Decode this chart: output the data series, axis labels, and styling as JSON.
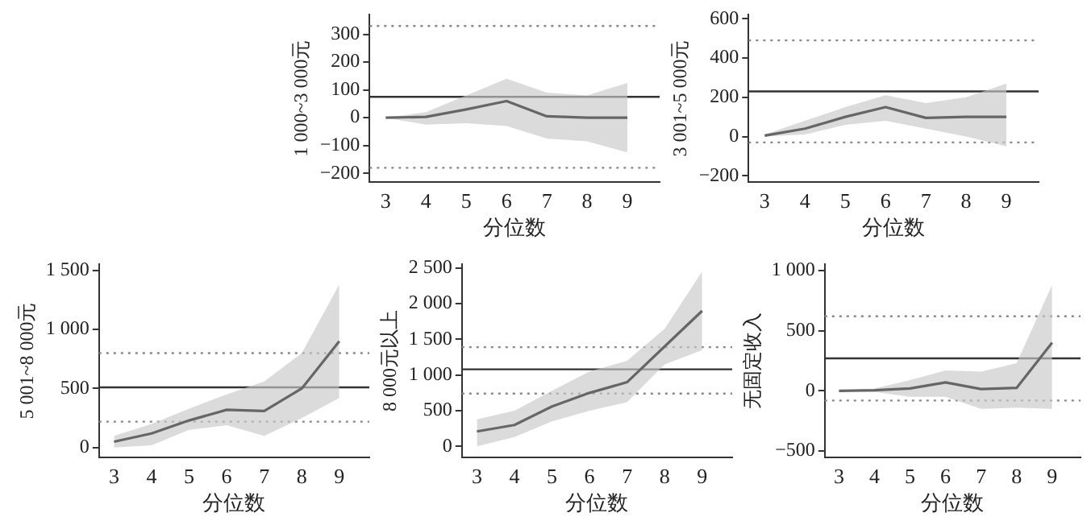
{
  "chart_data": [
    {
      "type": "line",
      "xlabel": "分位数",
      "ylabel": "1 000~3 000元",
      "x": [
        3,
        4,
        5,
        6,
        7,
        8,
        9
      ],
      "xlim": [
        2.6,
        9.8
      ],
      "xticks": [
        3,
        4,
        5,
        6,
        7,
        8,
        9
      ],
      "ylim": [
        -230,
        370
      ],
      "yticks": [
        -200,
        -100,
        0,
        100,
        200,
        300
      ],
      "grid": false,
      "legend": false,
      "marker": "none",
      "series": [
        {
          "color": "#666666",
          "values": [
            0,
            3,
            30,
            60,
            5,
            0,
            0
          ],
          "lower": [
            0,
            -25,
            -20,
            -30,
            -75,
            -85,
            -125
          ],
          "upper": [
            0,
            20,
            80,
            140,
            90,
            80,
            125
          ]
        }
      ],
      "ref_lines": [
        {
          "axis": "y",
          "value": 75,
          "color": "#333333",
          "line_style": "solid"
        },
        {
          "axis": "y",
          "value": 330,
          "color": "#888888",
          "line_style": "dotted"
        },
        {
          "axis": "y",
          "value": -180,
          "color": "#888888",
          "line_style": "dotted"
        }
      ]
    },
    {
      "type": "line",
      "xlabel": "分位数",
      "ylabel": "3 001~5 000元",
      "x": [
        3,
        4,
        5,
        6,
        7,
        8,
        9
      ],
      "xlim": [
        2.6,
        9.8
      ],
      "xticks": [
        3,
        4,
        5,
        6,
        7,
        8,
        9
      ],
      "ylim": [
        -230,
        620
      ],
      "yticks": [
        -200,
        0,
        200,
        400,
        600
      ],
      "grid": false,
      "legend": false,
      "marker": "none",
      "series": [
        {
          "color": "#666666",
          "values": [
            5,
            40,
            100,
            150,
            95,
            100,
            100
          ],
          "lower": [
            0,
            10,
            60,
            80,
            40,
            0,
            -50
          ],
          "upper": [
            10,
            80,
            150,
            210,
            170,
            200,
            270
          ]
        }
      ],
      "ref_lines": [
        {
          "axis": "y",
          "value": 230,
          "color": "#333333",
          "line_style": "solid"
        },
        {
          "axis": "y",
          "value": 490,
          "color": "#888888",
          "line_style": "dotted"
        },
        {
          "axis": "y",
          "value": -30,
          "color": "#888888",
          "line_style": "dotted"
        }
      ]
    },
    {
      "type": "line",
      "xlabel": "分位数",
      "ylabel": "5 001~8 000元",
      "x": [
        3,
        4,
        5,
        6,
        7,
        8,
        9
      ],
      "xlim": [
        2.6,
        9.8
      ],
      "xticks": [
        3,
        4,
        5,
        6,
        7,
        8,
        9
      ],
      "ylim": [
        -80,
        1550
      ],
      "yticks": [
        0,
        500,
        {
          "value": 1000,
          "label": "1 000"
        },
        {
          "value": 1500,
          "label": "1 500"
        }
      ],
      "grid": false,
      "legend": false,
      "marker": "none",
      "series": [
        {
          "color": "#666666",
          "values": [
            50,
            120,
            230,
            320,
            310,
            500,
            900
          ],
          "lower": [
            0,
            20,
            150,
            190,
            100,
            250,
            420
          ],
          "upper": [
            100,
            200,
            330,
            450,
            560,
            800,
            1380
          ]
        }
      ],
      "ref_lines": [
        {
          "axis": "y",
          "value": 510,
          "color": "#333333",
          "line_style": "solid"
        },
        {
          "axis": "y",
          "value": 800,
          "color": "#888888",
          "line_style": "dotted"
        },
        {
          "axis": "y",
          "value": 220,
          "color": "#888888",
          "line_style": "dotted"
        }
      ]
    },
    {
      "type": "line",
      "xlabel": "分位数",
      "ylabel": "8 000元以上",
      "x": [
        3,
        4,
        5,
        6,
        7,
        8,
        9
      ],
      "xlim": [
        2.6,
        9.8
      ],
      "xticks": [
        3,
        4,
        5,
        6,
        7,
        8,
        9
      ],
      "ylim": [
        -150,
        2550
      ],
      "yticks": [
        0,
        500,
        {
          "value": 1000,
          "label": "1 000"
        },
        {
          "value": 1500,
          "label": "1 500"
        },
        {
          "value": 2000,
          "label": "2 000"
        },
        {
          "value": 2500,
          "label": "2 500"
        }
      ],
      "grid": false,
      "legend": false,
      "marker": "none",
      "series": [
        {
          "color": "#666666",
          "values": [
            210,
            300,
            560,
            750,
            900,
            1400,
            1900
          ],
          "lower": [
            0,
            130,
            350,
            500,
            620,
            1150,
            1350
          ],
          "upper": [
            380,
            500,
            780,
            1050,
            1200,
            1650,
            2450
          ]
        }
      ],
      "ref_lines": [
        {
          "axis": "y",
          "value": 1080,
          "color": "#333333",
          "line_style": "solid"
        },
        {
          "axis": "y",
          "value": 1390,
          "color": "#888888",
          "line_style": "dotted"
        },
        {
          "axis": "y",
          "value": 740,
          "color": "#888888",
          "line_style": "dotted"
        }
      ]
    },
    {
      "type": "line",
      "xlabel": "分位数",
      "ylabel": "无固定收入",
      "x": [
        3,
        4,
        5,
        6,
        7,
        8,
        9
      ],
      "xlim": [
        2.6,
        9.8
      ],
      "xticks": [
        3,
        4,
        5,
        6,
        7,
        8,
        9
      ],
      "ylim": [
        -550,
        1050
      ],
      "yticks": [
        -500,
        0,
        500,
        {
          "value": 1000,
          "label": "1 000"
        }
      ],
      "grid": false,
      "legend": false,
      "marker": "none",
      "series": [
        {
          "color": "#666666",
          "values": [
            0,
            5,
            20,
            70,
            15,
            25,
            400
          ],
          "lower": [
            0,
            -10,
            -50,
            -50,
            -150,
            -140,
            -150
          ],
          "upper": [
            0,
            20,
            90,
            170,
            160,
            230,
            880
          ]
        }
      ],
      "ref_lines": [
        {
          "axis": "y",
          "value": 270,
          "color": "#333333",
          "line_style": "solid"
        },
        {
          "axis": "y",
          "value": 620,
          "color": "#888888",
          "line_style": "dotted"
        },
        {
          "axis": "y",
          "value": -80,
          "color": "#888888",
          "line_style": "dotted"
        }
      ]
    }
  ]
}
